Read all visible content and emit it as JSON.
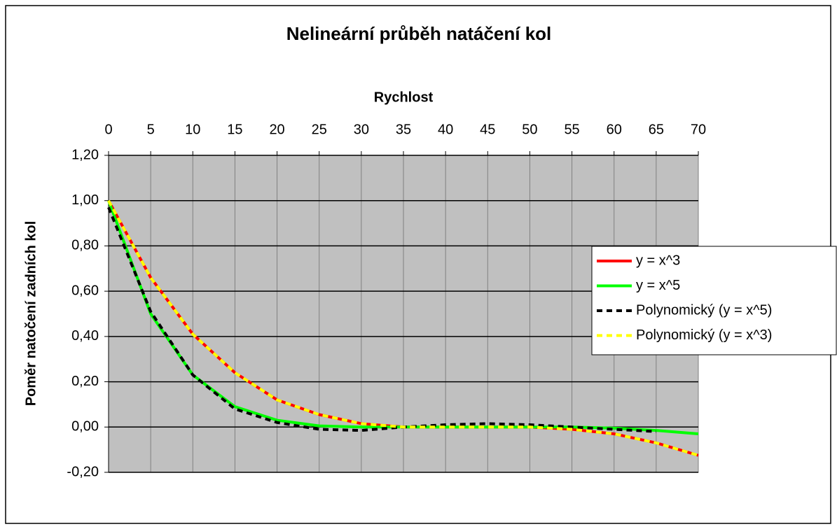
{
  "chart_data": {
    "type": "line",
    "title": "Nelineární průběh natáčení kol",
    "x_label": "Rychlost",
    "y_label": "Poměr natočení zadních kol",
    "x": [
      0,
      5,
      10,
      15,
      20,
      25,
      30,
      35,
      40,
      45,
      50,
      55,
      60,
      65,
      70
    ],
    "series": [
      {
        "name": "y = x^3",
        "color": "#ff0000",
        "style": "solid",
        "values": [
          1.0,
          0.66,
          0.41,
          0.24,
          0.12,
          0.055,
          0.015,
          0.0,
          0.0,
          0.0,
          0.0,
          -0.01,
          -0.03,
          -0.07,
          -0.125
        ]
      },
      {
        "name": "y = x^5",
        "color": "#00ff00",
        "style": "solid",
        "values": [
          1.0,
          0.5,
          0.23,
          0.09,
          0.03,
          0.005,
          0.0,
          0.0,
          0.0,
          0.0,
          0.0,
          0.0,
          -0.005,
          -0.015,
          -0.03
        ]
      },
      {
        "name": "Polynomický (y = x^5)",
        "color": "#000000",
        "style": "dashed",
        "values": [
          0.97,
          0.51,
          0.23,
          0.08,
          0.02,
          -0.01,
          -0.015,
          0.0,
          0.01,
          0.015,
          0.01,
          0.0,
          -0.01,
          -0.02,
          null
        ]
      },
      {
        "name": "Polynomický (y = x^3)",
        "color": "#ffff00",
        "style": "dashed",
        "values": [
          1.0,
          0.66,
          0.41,
          0.24,
          0.12,
          0.055,
          0.015,
          0.0,
          0.0,
          0.0,
          0.0,
          -0.01,
          -0.03,
          -0.07,
          -0.125
        ]
      }
    ],
    "xlim": [
      0,
      70
    ],
    "xticks": [
      0,
      5,
      10,
      15,
      20,
      25,
      30,
      35,
      40,
      45,
      50,
      55,
      60,
      65,
      70
    ],
    "ylim": [
      -0.2,
      1.2
    ],
    "yticks": [
      {
        "value": -0.2,
        "label": "-0,20"
      },
      {
        "value": 0,
        "label": "0,00"
      },
      {
        "value": 0.2,
        "label": "0,20"
      },
      {
        "value": 0.4,
        "label": "0,40"
      },
      {
        "value": 0.6,
        "label": "0,60"
      },
      {
        "value": 0.8,
        "label": "0,80"
      },
      {
        "value": 1.0,
        "label": "1,00"
      },
      {
        "value": 1.2,
        "label": "1,20"
      }
    ],
    "grid": true,
    "legend": "right",
    "x_axis_position": "top"
  }
}
